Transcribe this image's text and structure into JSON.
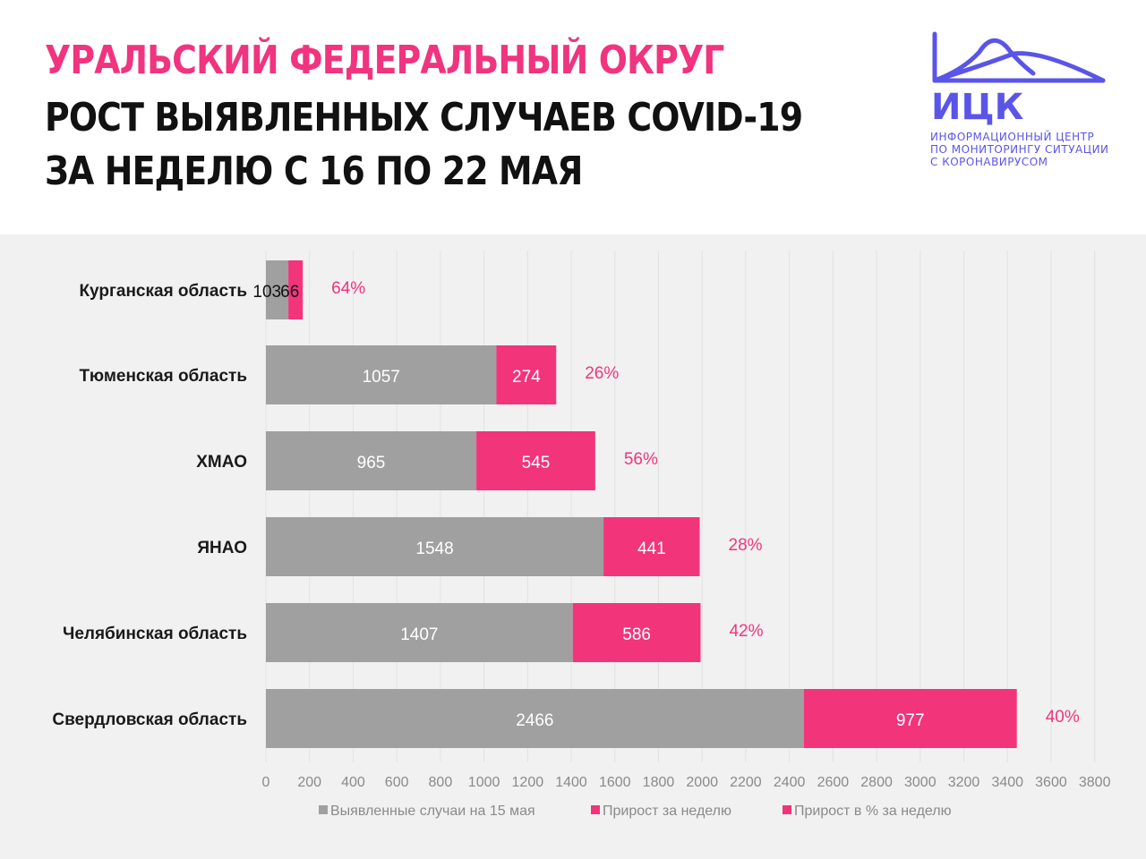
{
  "header": {
    "title_line1": "УРАЛЬСКИЙ ФЕДЕРАЛЬНЫЙ ОКРУГ",
    "title_line2": "РОСТ ВЫЯВЛЕННЫХ СЛУЧАЕВ COVID-19",
    "title_line3": "ЗА НЕДЕЛЮ С 16 ПО 22 МАЯ"
  },
  "logo": {
    "abbr": "ИЦК",
    "line1": "ИНФОРМАЦИОННЫЙ ЦЕНТР",
    "line2": "ПО МОНИТОРИНГУ СИТУАЦИИ",
    "line3": "С КОРОНАВИРУСОМ",
    "color": "#5a55e8"
  },
  "chart_data": {
    "type": "bar",
    "orientation": "horizontal",
    "stacked": true,
    "categories": [
      "Курганская область",
      "Тюменская область",
      "ХМАО",
      "ЯНАО",
      "Челябинская область",
      "Свердловская область"
    ],
    "series": [
      {
        "name": "Выявленные случаи на 15 мая",
        "values": [
          103,
          1057,
          965,
          1548,
          1407,
          2466
        ],
        "color": "#a0a0a0"
      },
      {
        "name": "Прирост за неделю",
        "values": [
          66,
          274,
          545,
          441,
          586,
          977
        ],
        "color": "#f2347b"
      }
    ],
    "percent_series": {
      "name": "Прирост в % за неделю",
      "labels": [
        "64%",
        "26%",
        "56%",
        "28%",
        "42%",
        "40%"
      ],
      "color": "#f2347b"
    },
    "xlim": [
      0,
      3800
    ],
    "xticks": [
      0,
      200,
      400,
      600,
      800,
      1000,
      1200,
      1400,
      1600,
      1800,
      2000,
      2200,
      2400,
      2600,
      2800,
      3000,
      3200,
      3400,
      3600,
      3800
    ],
    "grid": true,
    "legend_position": "bottom"
  }
}
